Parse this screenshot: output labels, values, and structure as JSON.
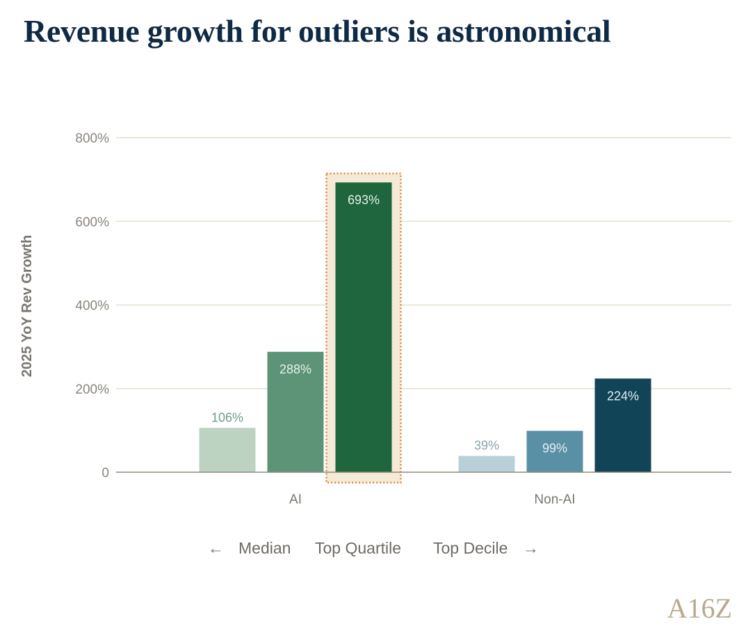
{
  "chart_data": {
    "type": "bar",
    "title": "Revenue growth for outliers is astronomical",
    "ylabel": "2025 YoY Rev Growth",
    "xlabel": "",
    "ylim": [
      0,
      800
    ],
    "yticks": [
      0,
      200,
      400,
      600,
      800
    ],
    "ytick_labels": [
      "0",
      "200%",
      "400%",
      "600%",
      "800%"
    ],
    "categories": [
      "AI",
      "Non-AI"
    ],
    "series": [
      {
        "name": "Median",
        "values": [
          106,
          39
        ],
        "labels": [
          "106%",
          "39%"
        ]
      },
      {
        "name": "Top Quartile",
        "values": [
          288,
          99
        ],
        "labels": [
          "288%",
          "99%"
        ]
      },
      {
        "name": "Top Decile",
        "values": [
          693,
          224
        ],
        "labels": [
          "693%",
          "224%"
        ]
      }
    ],
    "colors": {
      "AI": [
        "#bcd3c2",
        "#5d9478",
        "#1f663e"
      ],
      "Non-AI": [
        "#b9d0d8",
        "#5a90a5",
        "#114457"
      ],
      "highlight_fill": "#f5e9d8",
      "highlight_border": "#d4893a",
      "grid": "#e4e0cf",
      "baseline": "#8f8a7f"
    },
    "highlight": {
      "category": "AI",
      "series": "Top Decile"
    },
    "legend": {
      "left_arrow": "←",
      "right_arrow": "→",
      "items": [
        "Median",
        "Top Quartile",
        "Top Decile"
      ]
    },
    "grid": true
  },
  "logo": {
    "text": "A16Z"
  }
}
